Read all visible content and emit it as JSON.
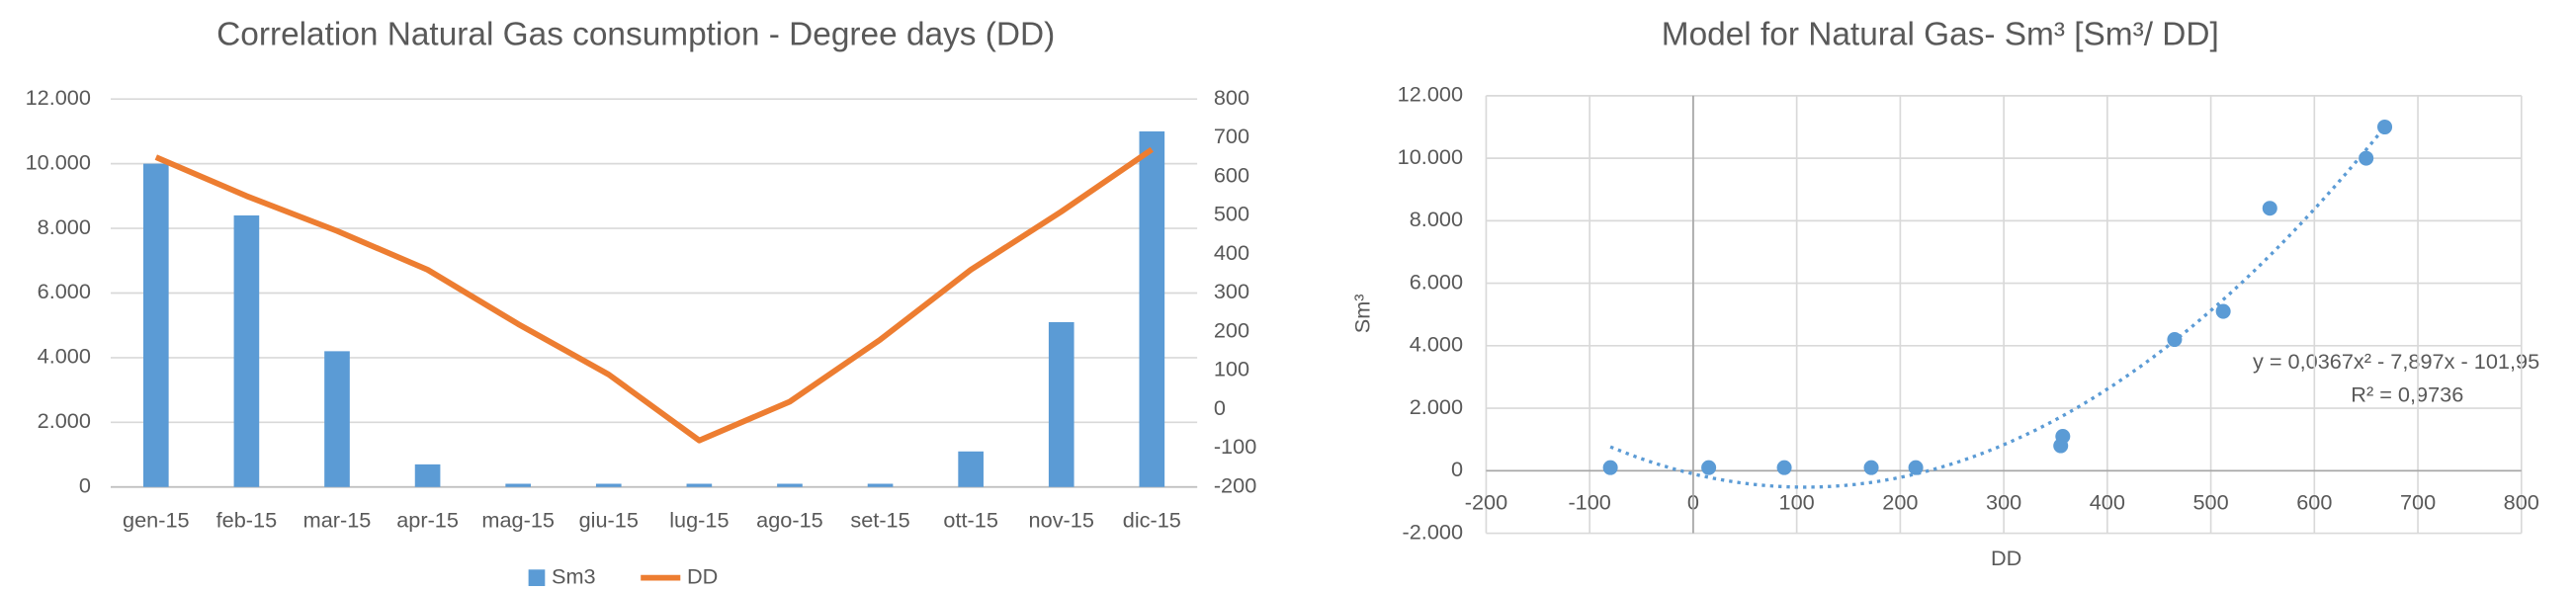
{
  "chart_data": [
    {
      "type": "bar-line",
      "title": "Correlation Natural Gas consumption - Degree days (DD)",
      "categories": [
        "gen-15",
        "feb-15",
        "mar-15",
        "apr-15",
        "mag-15",
        "giu-15",
        "lug-15",
        "ago-15",
        "set-15",
        "ott-15",
        "nov-15",
        "dic-15"
      ],
      "series": [
        {
          "name": "Sm3",
          "type": "bar",
          "color": "#5b9bd5",
          "values": [
            10000,
            8400,
            4200,
            700,
            100,
            100,
            100,
            100,
            100,
            1100,
            5100,
            11000
          ]
        },
        {
          "name": "DD",
          "type": "line",
          "axis": "y2",
          "color": "#ed7d31",
          "values": [
            650,
            550,
            460,
            360,
            220,
            90,
            -80,
            20,
            180,
            360,
            510,
            670
          ]
        }
      ],
      "ylim": [
        0,
        12000
      ],
      "yticks": [
        {
          "value": 0,
          "label": "0"
        },
        {
          "value": 2000,
          "label": "2.000"
        },
        {
          "value": 4000,
          "label": "4.000"
        },
        {
          "value": 6000,
          "label": "6.000"
        },
        {
          "value": 8000,
          "label": "8.000"
        },
        {
          "value": 10000,
          "label": "10.000"
        },
        {
          "value": 12000,
          "label": "12.000"
        }
      ],
      "y2lim": [
        -200,
        800
      ],
      "y2ticks": [
        -200,
        -100,
        0,
        100,
        200,
        300,
        400,
        500,
        600,
        700,
        800
      ],
      "grid": true,
      "legend": "bottom"
    },
    {
      "type": "scatter",
      "title": "Model for Natural Gas- Sm³ [Sm³/ DD]",
      "x_label": "DD",
      "y_label": "Sm³",
      "series": [
        {
          "color": "#5b9bd5",
          "x": [
            -80,
            15,
            88,
            172,
            215,
            355,
            357,
            465,
            512,
            557,
            650,
            668
          ],
          "values": [
            100,
            100,
            100,
            100,
            100,
            800,
            1100,
            4200,
            5100,
            8400,
            10000,
            11000
          ]
        }
      ],
      "trendline": {
        "coefficients": [
          -101.95,
          -7.897,
          0.0367
        ],
        "equation": "y = 0,0367x² - 7,897x - 101,95",
        "r_squared": "R² = 0,9736"
      },
      "xlim": [
        -200,
        800
      ],
      "xticks": [
        -200,
        -100,
        0,
        100,
        200,
        300,
        400,
        500,
        600,
        700,
        800
      ],
      "ylim": [
        -2000,
        12000
      ],
      "yticks": [
        {
          "value": -2000,
          "label": "-2.000"
        },
        {
          "value": 0,
          "label": "0"
        },
        {
          "value": 2000,
          "label": "2.000"
        },
        {
          "value": 4000,
          "label": "4.000"
        },
        {
          "value": 6000,
          "label": "6.000"
        },
        {
          "value": 8000,
          "label": "8.000"
        },
        {
          "value": 10000,
          "label": "10.000"
        },
        {
          "value": 12000,
          "label": "12.000"
        }
      ],
      "grid": true
    }
  ]
}
